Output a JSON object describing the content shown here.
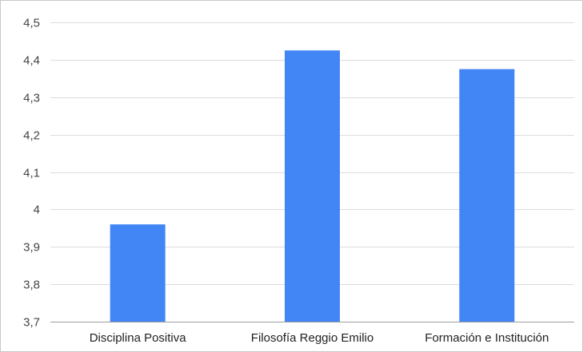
{
  "colors": {
    "bar": "#4285f4"
  },
  "chart_data": {
    "type": "bar",
    "title": "",
    "xlabel": "",
    "ylabel": "",
    "categories": [
      "Disciplina Positiva",
      "Filosofía Reggio Emilio",
      "Formación e Institución"
    ],
    "values": [
      3.96,
      4.425,
      4.375
    ],
    "ylim": [
      3.7,
      4.5
    ],
    "yticks": [
      3.7,
      3.8,
      3.9,
      4.0,
      4.1,
      4.2,
      4.3,
      4.4,
      4.5
    ],
    "ytick_labels": [
      "3,7",
      "3,8",
      "3,9",
      "4",
      "4,1",
      "4,2",
      "4,3",
      "4,4",
      "4,5"
    ],
    "grid": true,
    "legend": "none"
  }
}
